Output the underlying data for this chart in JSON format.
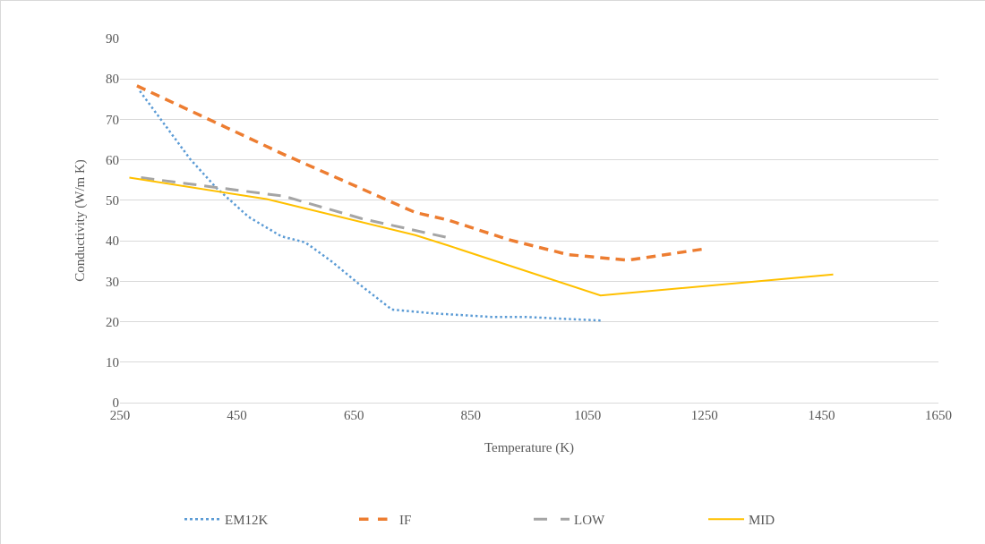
{
  "chart_data": {
    "type": "line",
    "xlabel": "Temperature (K)",
    "ylabel": "Conductivity (W/m K)",
    "xlim": [
      250,
      1650
    ],
    "xticks": [
      250,
      450,
      650,
      850,
      1050,
      1250,
      1450,
      1650
    ],
    "ylim": [
      0,
      90
    ],
    "yticks": [
      0,
      10,
      20,
      30,
      40,
      50,
      60,
      70,
      80,
      90
    ],
    "grid": "y",
    "legend": "bottom",
    "marker": "none",
    "series": [
      {
        "name": "EM12K",
        "color": "#5b9bd5",
        "line_style": "dotted",
        "x": [
          284,
          370,
          414,
          470,
          526,
          567,
          613,
          659,
          715,
          781,
          884,
          939,
          1072
        ],
        "values": [
          77,
          60.2,
          53.2,
          45.9,
          41.1,
          39.6,
          34.8,
          29.3,
          23,
          22.1,
          21.2,
          21.2,
          20.3
        ]
      },
      {
        "name": "IF",
        "color": "#ed7d31",
        "line_style": "dashed",
        "x": [
          279,
          531,
          755,
          812,
          914,
          1016,
          1118,
          1245
        ],
        "values": [
          78.3,
          61.3,
          47,
          45.1,
          40.3,
          36.6,
          35.2,
          37.9
        ]
      },
      {
        "name": "LOW",
        "color": "#a5a5a5",
        "line_style": "longdash",
        "x": [
          286,
          531,
          663,
          807
        ],
        "values": [
          55.6,
          51,
          45.5,
          40.9
        ]
      },
      {
        "name": "MID",
        "color": "#ffc000",
        "line_style": "solid",
        "x": [
          266,
          501,
          755,
          812,
          1072,
          1470
        ],
        "values": [
          55.6,
          50.3,
          41.4,
          38.8,
          26.5,
          31.7
        ]
      }
    ]
  }
}
